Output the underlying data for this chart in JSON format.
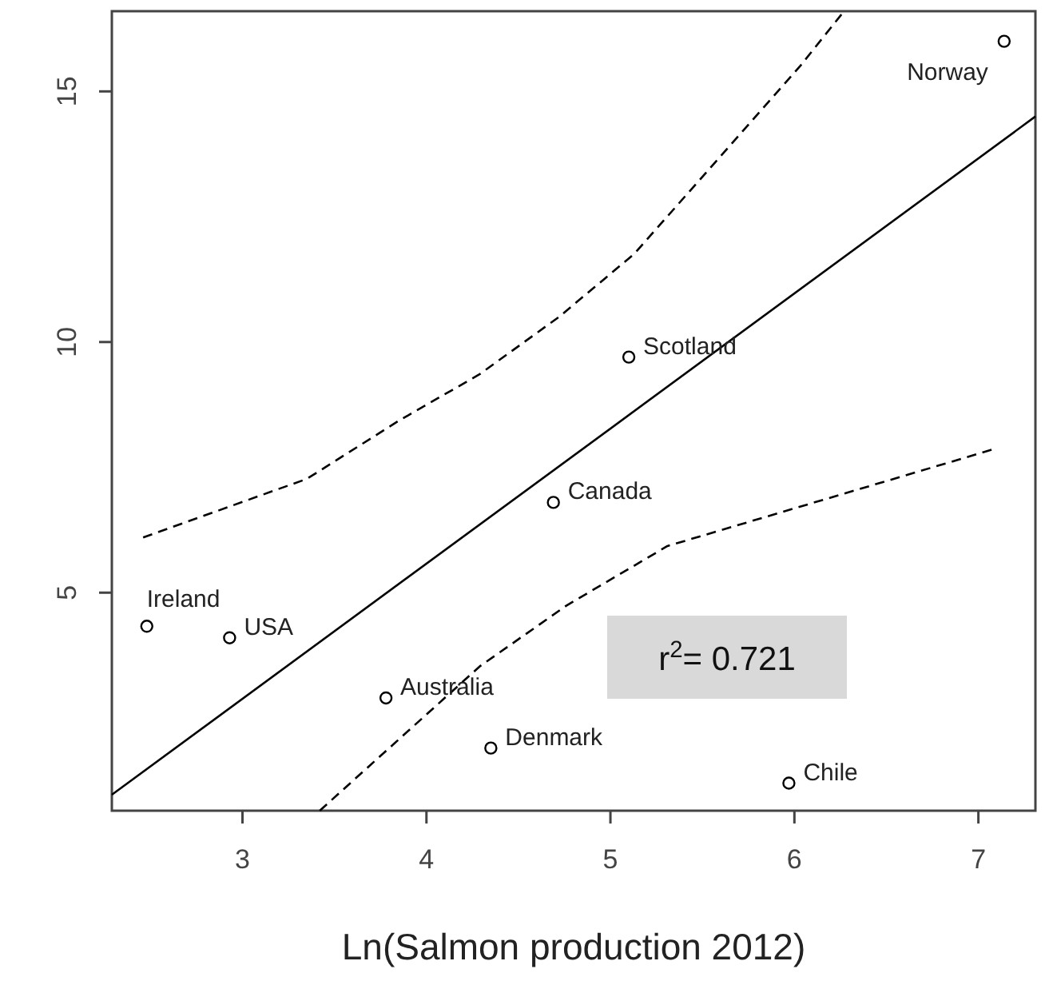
{
  "chart_data": {
    "type": "scatter",
    "xlabel": "Ln(Salmon production 2012)",
    "xlim": [
      2.29,
      7.31
    ],
    "xticks": [
      3,
      4,
      5,
      6,
      7
    ],
    "ylim": [
      0.65,
      16.6
    ],
    "yticks": [
      5,
      10,
      15
    ],
    "grid": false,
    "series": [
      {
        "marker": "circle",
        "color": "#000000",
        "x": [
          7.14,
          5.1,
          4.69,
          2.48,
          2.93,
          3.78,
          4.35,
          5.97
        ],
        "values": [
          16.0,
          9.7,
          6.8,
          4.33,
          4.1,
          2.9,
          1.9,
          1.2
        ]
      },
      {
        "type": "line",
        "marker": "none",
        "color": "#000000",
        "line_style": "solid",
        "x": [
          2.29,
          7.31
        ],
        "values": [
          0.97,
          14.5
        ]
      },
      {
        "type": "line",
        "marker": "none",
        "color": "#000000",
        "line_style": "dashed",
        "x": [
          2.46,
          3.35,
          3.85,
          4.29,
          4.72,
          5.13,
          6.03,
          6.27
        ],
        "values": [
          6.1,
          7.27,
          8.43,
          9.36,
          10.5,
          11.76,
          15.5,
          16.6
        ]
      },
      {
        "type": "line",
        "marker": "none",
        "color": "#000000",
        "line_style": "dashed",
        "x": [
          3.42,
          4.29,
          4.76,
          5.31,
          6.54,
          7.09
        ],
        "values": [
          0.65,
          3.53,
          4.74,
          5.93,
          7.27,
          7.87
        ]
      }
    ],
    "annotations": [
      {
        "text": "Norway",
        "x": 7.14,
        "y": 16.0
      },
      {
        "text": "Scotland",
        "x": 5.1,
        "y": 9.7
      },
      {
        "text": "Canada",
        "x": 4.69,
        "y": 6.8
      },
      {
        "text": "Ireland",
        "x": 2.48,
        "y": 4.33
      },
      {
        "text": "USA",
        "x": 2.93,
        "y": 4.1
      },
      {
        "text": "Australia",
        "x": 3.78,
        "y": 2.9
      },
      {
        "text": "Denmark",
        "x": 4.35,
        "y": 1.9
      },
      {
        "text": "Chile",
        "x": 5.97,
        "y": 1.2
      },
      "r$^{2}$= 0.721"
    ]
  }
}
